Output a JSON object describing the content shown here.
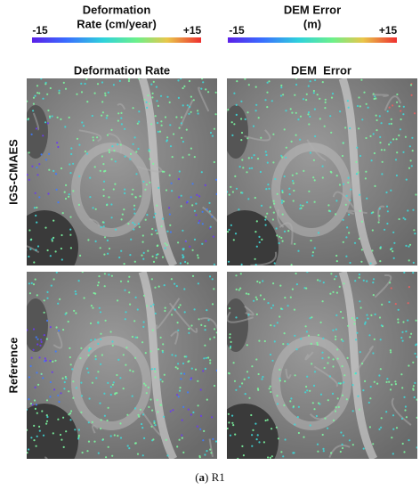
{
  "colorbars": [
    {
      "title_lines": [
        "Deformation",
        "Rate (cm/year)"
      ],
      "min_label": "-15",
      "max_label": "+15"
    },
    {
      "title_lines": [
        "DEM Error",
        "(m)"
      ],
      "min_label": "-15",
      "max_label": "+15"
    }
  ],
  "columns": [
    "Deformation Rate",
    "DEM  Error"
  ],
  "rows": [
    "IGS-CMAES",
    "Reference"
  ],
  "caption": {
    "open": "(",
    "label": "a",
    "rest": ") R1"
  }
}
